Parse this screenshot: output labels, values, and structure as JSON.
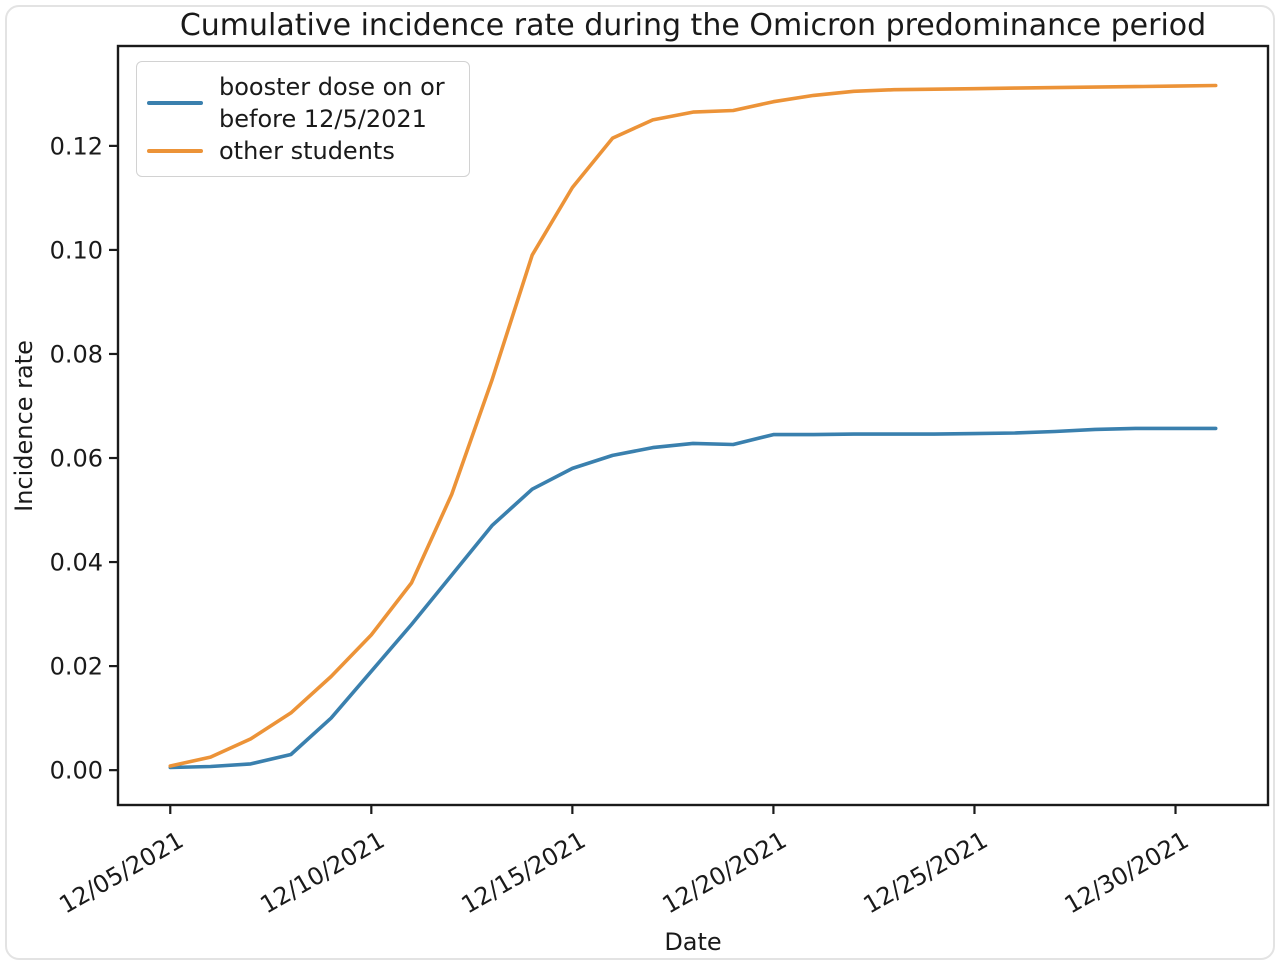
{
  "chart_data": {
    "type": "line",
    "title": "Cumulative incidence rate during the Omicron predominance period",
    "xlabel": "Date",
    "ylabel": "Incidence rate",
    "x": [
      "12/05/2021",
      "12/06/2021",
      "12/07/2021",
      "12/08/2021",
      "12/09/2021",
      "12/10/2021",
      "12/11/2021",
      "12/12/2021",
      "12/13/2021",
      "12/14/2021",
      "12/15/2021",
      "12/16/2021",
      "12/17/2021",
      "12/18/2021",
      "12/19/2021",
      "12/20/2021",
      "12/21/2021",
      "12/22/2021",
      "12/23/2021",
      "12/24/2021",
      "12/25/2021",
      "12/26/2021",
      "12/27/2021",
      "12/28/2021",
      "12/29/2021",
      "12/30/2021",
      "12/31/2021"
    ],
    "series": [
      {
        "name": "booster dose on or before 12/5/2021",
        "color": "#3a80ae",
        "values": [
          0.0005,
          0.0007,
          0.0012,
          0.003,
          0.01,
          0.019,
          0.028,
          0.0375,
          0.047,
          0.054,
          0.058,
          0.0605,
          0.062,
          0.0628,
          0.0626,
          0.0645,
          0.0645,
          0.0646,
          0.0646,
          0.0646,
          0.0647,
          0.0648,
          0.0651,
          0.0655,
          0.0657,
          0.0657,
          0.0657
        ]
      },
      {
        "name": "other students",
        "color": "#ec9338",
        "values": [
          0.0008,
          0.0025,
          0.006,
          0.011,
          0.018,
          0.026,
          0.036,
          0.053,
          0.075,
          0.099,
          0.112,
          0.1215,
          0.125,
          0.1265,
          0.1268,
          0.1285,
          0.1297,
          0.1305,
          0.1308,
          0.1309,
          0.131,
          0.1311,
          0.1312,
          0.1313,
          0.1314,
          0.1315,
          0.1316
        ]
      }
    ],
    "x_ticks": [
      "12/05/2021",
      "12/10/2021",
      "12/15/2021",
      "12/20/2021",
      "12/25/2021",
      "12/30/2021"
    ],
    "y_ticks": [
      "0.00",
      "0.02",
      "0.04",
      "0.06",
      "0.08",
      "0.10",
      "0.12"
    ],
    "xlim_days": [
      -1.3,
      27.3
    ],
    "ylim": [
      -0.0067,
      0.1392
    ],
    "grid": false,
    "legend_position": "upper left",
    "axis_color": "#1a1a1a"
  },
  "legend": {
    "items": [
      {
        "label": "booster dose on or\nbefore 12/5/2021",
        "color": "#3a80ae"
      },
      {
        "label": "other students",
        "color": "#ec9338"
      }
    ]
  }
}
